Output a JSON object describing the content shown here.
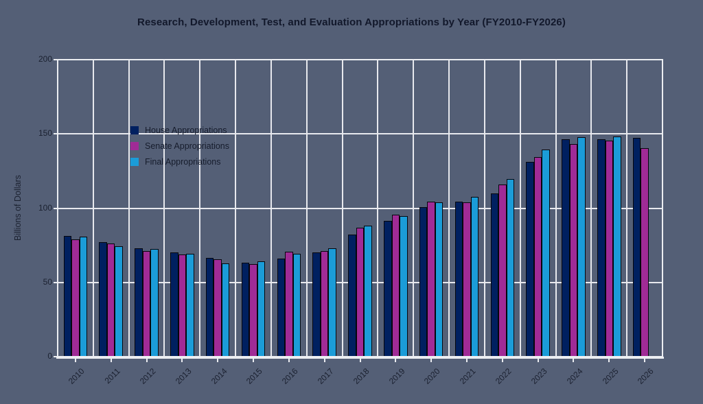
{
  "chart_data": {
    "type": "bar",
    "title": "Research, Development, Test, and Evaluation Appropriations by Year (FY2010-FY2026)",
    "ylabel": "Billions of Dollars",
    "ylim": [
      0,
      200
    ],
    "yticks": [
      0,
      50,
      100,
      150,
      200
    ],
    "grid": true,
    "legend_position": "top-left",
    "categories": [
      "2010",
      "2011",
      "2012",
      "2013",
      "2014",
      "2015",
      "2016",
      "2017",
      "2018",
      "2019",
      "2020",
      "2021",
      "2022",
      "2023",
      "2024",
      "2025",
      "2026"
    ],
    "series": [
      {
        "name": "House Appropriations",
        "color": "#002060",
        "values": [
          81.5,
          77,
          73,
          70,
          66.5,
          63.5,
          66,
          70,
          82,
          91.5,
          100.5,
          104.5,
          110,
          131,
          146.5,
          146.5,
          147.5
        ]
      },
      {
        "name": "Senate Appropriations",
        "color": "#a02b96",
        "values": [
          79,
          76,
          71,
          69,
          65.5,
          62.5,
          70.5,
          71,
          87,
          95.5,
          104.5,
          104,
          116,
          134.5,
          143,
          145.5,
          140.5
        ]
      },
      {
        "name": "Final Appropriations",
        "color": "#1b9cd8",
        "values": [
          81,
          74.5,
          72.5,
          69.5,
          63,
          64,
          69.5,
          73,
          88,
          94.5,
          104,
          107.5,
          119.5,
          139.5,
          148,
          148.5,
          null
        ]
      }
    ]
  },
  "colors": {
    "background": "#545f76",
    "gridline": "#e8e9ee",
    "text": "#1b2130",
    "bar_edge": "#05060c"
  }
}
